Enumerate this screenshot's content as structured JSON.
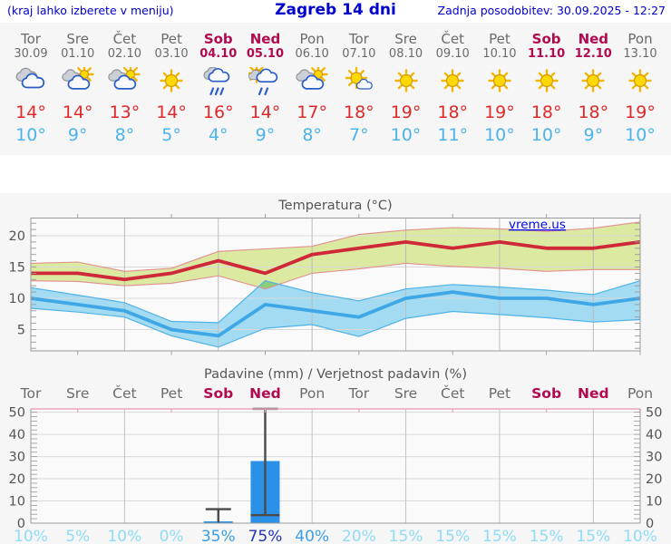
{
  "header": {
    "left_note": "(kraj lahko izberete v meniju)",
    "title": "Zagreb 14 dni",
    "updated": "Zadnja posodobitev: 30.09.2025 - 12:27"
  },
  "forecast_days": [
    {
      "name": "Tor",
      "date": "30.09",
      "weekend": false,
      "icon": "cloudy",
      "tmax": "14°",
      "tmin": "10°"
    },
    {
      "name": "Sre",
      "date": "01.10",
      "weekend": false,
      "icon": "partly",
      "tmax": "14°",
      "tmin": "9°"
    },
    {
      "name": "Čet",
      "date": "02.10",
      "weekend": false,
      "icon": "partly",
      "tmax": "13°",
      "tmin": "8°"
    },
    {
      "name": "Pet",
      "date": "03.10",
      "weekend": false,
      "icon": "sunny",
      "tmax": "14°",
      "tmin": "5°"
    },
    {
      "name": "Sob",
      "date": "04.10",
      "weekend": true,
      "icon": "rain",
      "tmax": "16°",
      "tmin": "4°"
    },
    {
      "name": "Ned",
      "date": "05.10",
      "weekend": true,
      "icon": "sun-rain",
      "tmax": "14°",
      "tmin": "9°"
    },
    {
      "name": "Pon",
      "date": "06.10",
      "weekend": false,
      "icon": "partly",
      "tmax": "17°",
      "tmin": "8°"
    },
    {
      "name": "Tor",
      "date": "07.10",
      "weekend": false,
      "icon": "mostly-sunny",
      "tmax": "18°",
      "tmin": "7°"
    },
    {
      "name": "Sre",
      "date": "08.10",
      "weekend": false,
      "icon": "sunny",
      "tmax": "19°",
      "tmin": "10°"
    },
    {
      "name": "Čet",
      "date": "09.10",
      "weekend": false,
      "icon": "sunny",
      "tmax": "18°",
      "tmin": "11°"
    },
    {
      "name": "Pet",
      "date": "10.10",
      "weekend": false,
      "icon": "sunny",
      "tmax": "19°",
      "tmin": "10°"
    },
    {
      "name": "Sob",
      "date": "11.10",
      "weekend": true,
      "icon": "sunny",
      "tmax": "18°",
      "tmin": "10°"
    },
    {
      "name": "Ned",
      "date": "12.10",
      "weekend": true,
      "icon": "sunny",
      "tmax": "18°",
      "tmin": "9°"
    },
    {
      "name": "Pon",
      "date": "13.10",
      "weekend": false,
      "icon": "sunny",
      "tmax": "19°",
      "tmin": "10°"
    }
  ],
  "chart_data": [
    {
      "type": "area",
      "title": "Temperatura (°C)",
      "watermark": "vreme.us",
      "categories": [
        "Tor",
        "Sre",
        "Čet",
        "Pet",
        "Sob",
        "Ned",
        "Pon",
        "Tor",
        "Sre",
        "Čet",
        "Pet",
        "Sob",
        "Ned",
        "Pon"
      ],
      "ylim": [
        1.6,
        22.8
      ],
      "yticks": [
        5,
        10,
        15,
        20
      ],
      "grid": true,
      "legend_position": "none",
      "series": [
        {
          "name": "max_temp",
          "color": "#cf2838",
          "values": [
            14,
            14,
            13,
            14,
            16,
            14,
            17,
            18,
            19,
            18,
            19,
            18,
            18,
            19
          ]
        },
        {
          "name": "max_range_upper",
          "values": [
            15.6,
            15.8,
            14.3,
            14.8,
            17.5,
            17.9,
            18.3,
            20.2,
            20.9,
            21.3,
            21.1,
            20.7,
            21.2,
            22.2
          ]
        },
        {
          "name": "max_range_lower",
          "values": [
            12.8,
            12.7,
            12.0,
            12.4,
            13.6,
            11.5,
            14.0,
            14.7,
            15.6,
            15.1,
            14.8,
            14.3,
            14.6,
            14.6
          ]
        },
        {
          "name": "min_temp",
          "color": "#3fa7e6",
          "values": [
            10,
            9,
            8,
            5,
            4,
            9,
            8,
            7,
            10,
            11,
            10,
            10,
            9,
            10
          ]
        },
        {
          "name": "min_range_upper",
          "values": [
            11.7,
            10.5,
            9.3,
            6.3,
            6.1,
            12.8,
            10.9,
            9.6,
            11.5,
            12.2,
            11.8,
            11.3,
            10.6,
            12.8
          ]
        },
        {
          "name": "min_range_lower",
          "values": [
            8.4,
            7.8,
            7.0,
            4.0,
            2.2,
            5.2,
            5.8,
            3.9,
            6.8,
            7.9,
            7.4,
            6.9,
            6.2,
            6.6
          ]
        }
      ]
    },
    {
      "type": "bar",
      "title": "Padavine (mm) / Verjetnost padavin (%)",
      "categories": [
        "Tor",
        "Sre",
        "Čet",
        "Pet",
        "Sob",
        "Ned",
        "Pon",
        "Tor",
        "Sre",
        "Čet",
        "Pet",
        "Sob",
        "Ned",
        "Pon"
      ],
      "weekend_flags": [
        false,
        false,
        false,
        false,
        true,
        true,
        false,
        false,
        false,
        false,
        false,
        true,
        true,
        false
      ],
      "ylim": [
        0,
        51.5
      ],
      "yticks": [
        0,
        10,
        20,
        30,
        40,
        50
      ],
      "values": [
        0,
        0,
        0,
        0,
        0.8,
        28,
        0,
        0,
        0,
        0,
        0,
        0,
        0,
        0
      ],
      "whiskers": [
        null,
        null,
        null,
        null,
        {
          "low": 0,
          "high": 6.3
        },
        {
          "low": 3.6,
          "high": 51.5
        },
        null,
        null,
        null,
        null,
        null,
        null,
        null,
        null
      ],
      "probabilities": [
        "10%",
        "5%",
        "10%",
        "0%",
        "35%",
        "75%",
        "40%",
        "20%",
        "15%",
        "15%",
        "15%",
        "15%",
        "15%",
        "10%"
      ],
      "prob_levels": [
        "low",
        "low",
        "low",
        "low",
        "mid",
        "high",
        "mid",
        "low",
        "low",
        "low",
        "low",
        "low",
        "low",
        "low"
      ]
    }
  ],
  "colors": {
    "header_blue": "#0000cd",
    "weekday_gray": "#6b6b6b",
    "weekend_crimson": "#b20a50",
    "tmax_red": "#e02a2a",
    "tmin_blue": "#4cb4ec",
    "chart_text": "#555555",
    "max_band_fill": "#dbe9a1",
    "max_band_edge": "#e28f8f",
    "min_band_fill": "#a3dcf2",
    "min_band_edge": "#4fb2e8",
    "band_overlap": "#8ccd78",
    "bar_blue": "#2b90e8",
    "whisker_gray": "#4a4a4a",
    "pink_axis": "#e9a6b8",
    "watermark_blue": "#0008e8",
    "prob_low": "#8edcf6",
    "prob_mid": "#3d9ee6",
    "prob_high": "#2334b8"
  }
}
